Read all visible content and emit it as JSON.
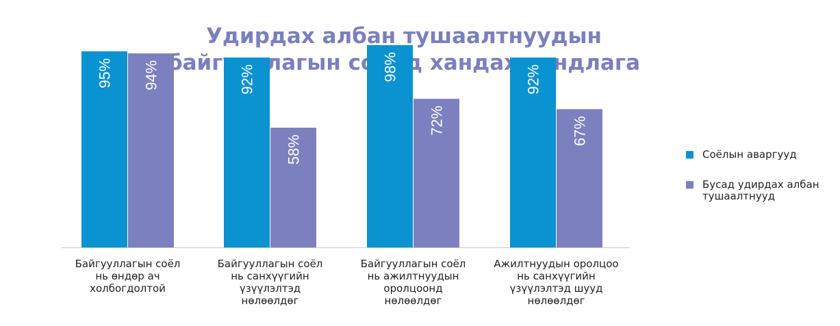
{
  "chart_data": {
    "type": "bar",
    "title_lines": [
      "Удирдах албан тушаалтнуудын",
      "байгууллагын соёлд хандах хандлага"
    ],
    "categories": [
      [
        "Байгууллагын соёл",
        "нь өндөр ач",
        "холбогдолтой"
      ],
      [
        "Байгууллагын соёл",
        "нь санхүүгийн",
        "үзүүлэлтэд",
        "нөлөөлдөг"
      ],
      [
        "Байгууллагын соёл",
        "нь ажилтнуудын",
        "оролцоонд",
        "нөлөөлдөг"
      ],
      [
        "Ажилтнуудын оролцоо",
        "нь санхүүгийн",
        "үзүүлэлтэд шууд",
        "нөлөөлдөг"
      ]
    ],
    "series": [
      {
        "name": "Соёлын аваргууд",
        "values": [
          95,
          92,
          98,
          92
        ],
        "labels": [
          "95%",
          "92%",
          "98%",
          "92%"
        ],
        "color": "#0a92d1"
      },
      {
        "name": "Бусад удирдах албан тушаалтнууд",
        "values": [
          94,
          58,
          72,
          67
        ],
        "labels": [
          "94%",
          "58%",
          "72%",
          "67%"
        ],
        "color": "#7c80be"
      }
    ],
    "ylim": [
      0,
      100
    ],
    "grid": false,
    "legend": "right"
  },
  "legend": [
    {
      "lines": [
        "Соёлын аваргууд"
      ],
      "color": "#0a92d1"
    },
    {
      "lines": [
        "Бусад удирдах албан",
        "тушаалтнууд"
      ],
      "color": "#7c80be"
    }
  ]
}
